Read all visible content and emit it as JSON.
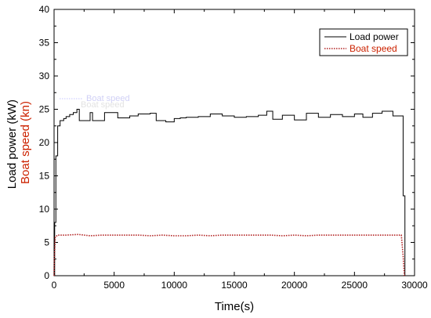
{
  "chart_data": {
    "type": "line",
    "xlabel": "Time(s)",
    "ylabel_parts": [
      {
        "text": "Load power (kW)",
        "color": "#000000"
      },
      {
        "text": "Boat speed (kn)",
        "color": "#b22222"
      }
    ],
    "xlim": [
      0,
      30000
    ],
    "ylim": [
      0,
      40
    ],
    "xticks": [
      0,
      5000,
      10000,
      15000,
      20000,
      25000,
      30000
    ],
    "xtick_labels": [
      "0",
      "5000",
      "10000",
      "15000",
      "20000",
      "25000",
      "30000"
    ],
    "yticks": [
      0,
      5,
      10,
      15,
      20,
      25,
      30,
      35,
      40
    ],
    "ytick_labels": [
      "0",
      "5",
      "10",
      "15",
      "20",
      "25",
      "30",
      "35",
      "40"
    ],
    "legend_position": "top-right",
    "grid": false,
    "series": [
      {
        "name": "Load power",
        "color": "#000000",
        "style": "solid",
        "step": true,
        "x": [
          0,
          50,
          150,
          300,
          500,
          800,
          1000,
          1300,
          1600,
          1900,
          2100,
          3000,
          3200,
          4200,
          5300,
          6300,
          7000,
          8000,
          8500,
          9300,
          10000,
          10500,
          11000,
          12000,
          13000,
          14000,
          15000,
          16000,
          17000,
          17700,
          18200,
          19000,
          20000,
          21000,
          22000,
          23000,
          24000,
          25000,
          25700,
          26500,
          27300,
          28200,
          28900,
          29050,
          29200
        ],
        "y": [
          0,
          8,
          18,
          22.5,
          23.3,
          23.6,
          23.9,
          24.2,
          24.5,
          25,
          23.3,
          24.5,
          23.3,
          24.5,
          23.7,
          24,
          24.3,
          24.4,
          23.3,
          23.1,
          23.6,
          23.7,
          23.8,
          23.9,
          24.3,
          24,
          23.8,
          23.9,
          24.1,
          24.7,
          23.5,
          24.1,
          23.4,
          24.4,
          23.8,
          24.2,
          23.9,
          24.3,
          23.8,
          24.4,
          24.7,
          24,
          24,
          12,
          0
        ]
      },
      {
        "name": "Boat speed",
        "color": "#b22222",
        "style": "dotted",
        "step": false,
        "x": [
          0,
          30,
          100,
          300,
          600,
          1000,
          2000,
          3000,
          4000,
          5000,
          6000,
          7000,
          8000,
          9000,
          10000,
          11000,
          12000,
          13000,
          14000,
          15000,
          16000,
          17000,
          18000,
          19000,
          20000,
          21000,
          22000,
          23000,
          24000,
          25000,
          26000,
          27000,
          28000,
          28900,
          29050,
          29150
        ],
        "y": [
          0,
          3,
          5.8,
          6.1,
          6.1,
          6.1,
          6.2,
          6.0,
          6.1,
          6.1,
          6.1,
          6.1,
          6.0,
          6.1,
          6.0,
          6.0,
          6.1,
          6.0,
          6.1,
          6.1,
          6.1,
          6.1,
          6.1,
          6.0,
          6.1,
          6.0,
          6.1,
          6.1,
          6.1,
          6.1,
          6.1,
          6.1,
          6.1,
          6.1,
          3,
          0
        ]
      }
    ],
    "ghost_annotation": {
      "line1": "Boat speed",
      "line2": "Boat speed",
      "color": "#c8c8ff"
    }
  }
}
